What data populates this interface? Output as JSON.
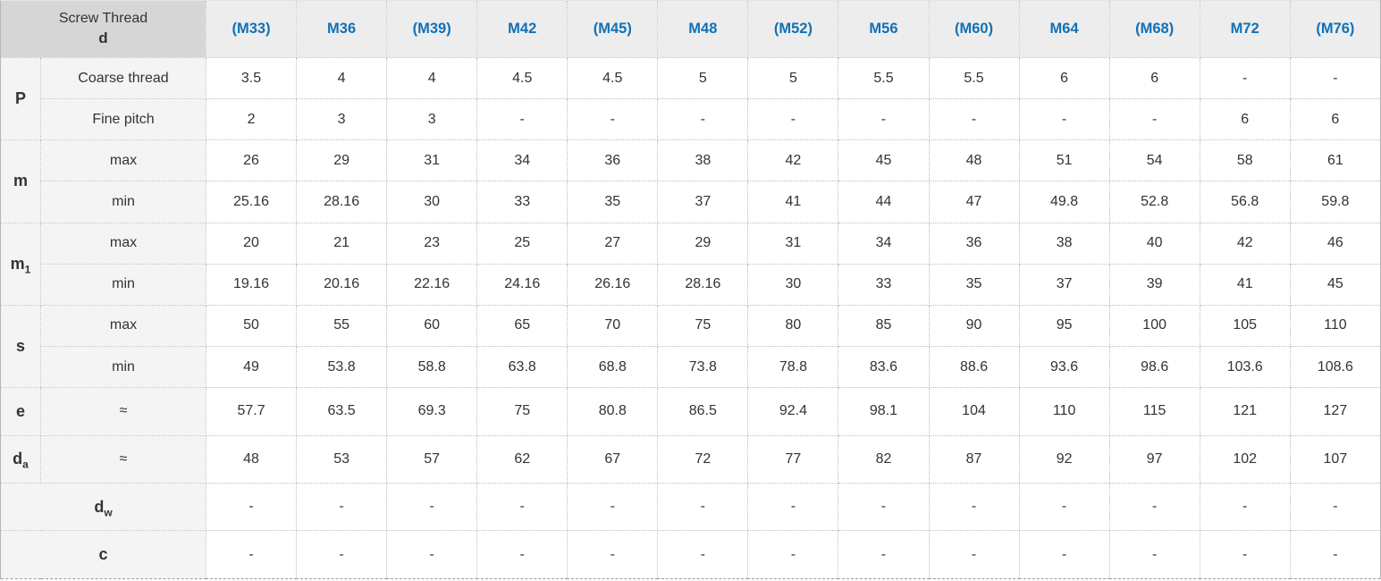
{
  "chart_data": {
    "type": "table",
    "title": "Screw thread dimension table",
    "corner_header": {
      "line1": "Screw Thread",
      "line2": "d"
    },
    "columns": [
      "(M33)",
      "M36",
      "(M39)",
      "M42",
      "(M45)",
      "M48",
      "(M52)",
      "M56",
      "(M60)",
      "M64",
      "(M68)",
      "M72",
      "(M76)"
    ],
    "row_groups": [
      {
        "label": "P",
        "rows": [
          {
            "sublabel": "Coarse thread",
            "values": [
              "3.5",
              "4",
              "4",
              "4.5",
              "4.5",
              "5",
              "5",
              "5.5",
              "5.5",
              "6",
              "6",
              "-",
              "-"
            ]
          },
          {
            "sublabel": "Fine pitch",
            "values": [
              "2",
              "3",
              "3",
              "-",
              "-",
              "-",
              "-",
              "-",
              "-",
              "-",
              "-",
              "6",
              "6"
            ]
          }
        ]
      },
      {
        "label": "m",
        "rows": [
          {
            "sublabel": "max",
            "values": [
              "26",
              "29",
              "31",
              "34",
              "36",
              "38",
              "42",
              "45",
              "48",
              "51",
              "54",
              "58",
              "61"
            ]
          },
          {
            "sublabel": "min",
            "values": [
              "25.16",
              "28.16",
              "30",
              "33",
              "35",
              "37",
              "41",
              "44",
              "47",
              "49.8",
              "52.8",
              "56.8",
              "59.8"
            ]
          }
        ]
      },
      {
        "label": "m",
        "label_sub": "1",
        "rows": [
          {
            "sublabel": "max",
            "values": [
              "20",
              "21",
              "23",
              "25",
              "27",
              "29",
              "31",
              "34",
              "36",
              "38",
              "40",
              "42",
              "46"
            ]
          },
          {
            "sublabel": "min",
            "values": [
              "19.16",
              "20.16",
              "22.16",
              "24.16",
              "26.16",
              "28.16",
              "30",
              "33",
              "35",
              "37",
              "39",
              "41",
              "45"
            ]
          }
        ]
      },
      {
        "label": "s",
        "rows": [
          {
            "sublabel": "max",
            "values": [
              "50",
              "55",
              "60",
              "65",
              "70",
              "75",
              "80",
              "85",
              "90",
              "95",
              "100",
              "105",
              "110"
            ]
          },
          {
            "sublabel": "min",
            "values": [
              "49",
              "53.8",
              "58.8",
              "63.8",
              "68.8",
              "73.8",
              "78.8",
              "83.6",
              "88.6",
              "93.6",
              "98.6",
              "103.6",
              "108.6"
            ]
          }
        ]
      },
      {
        "label": "e",
        "rows": [
          {
            "sublabel": "≈",
            "values": [
              "57.7",
              "63.5",
              "69.3",
              "75",
              "80.8",
              "86.5",
              "92.4",
              "98.1",
              "104",
              "110",
              "115",
              "121",
              "127"
            ]
          }
        ]
      },
      {
        "label": "d",
        "label_sub": "a",
        "rows": [
          {
            "sublabel": "≈",
            "values": [
              "48",
              "53",
              "57",
              "62",
              "67",
              "72",
              "77",
              "82",
              "87",
              "92",
              "97",
              "102",
              "107"
            ]
          }
        ]
      },
      {
        "label": "d",
        "label_sub": "w",
        "merged": true,
        "rows": [
          {
            "values": [
              "-",
              "-",
              "-",
              "-",
              "-",
              "-",
              "-",
              "-",
              "-",
              "-",
              "-",
              "-",
              "-"
            ]
          }
        ]
      },
      {
        "label": "c",
        "merged": true,
        "rows": [
          {
            "values": [
              "-",
              "-",
              "-",
              "-",
              "-",
              "-",
              "-",
              "-",
              "-",
              "-",
              "-",
              "-",
              "-"
            ]
          }
        ]
      }
    ]
  },
  "colors": {
    "header_corner_bg": "#d6d6d6",
    "header_col_bg": "#ededed",
    "label_col_bg": "#f4f4f4",
    "accent_blue": "#1271b5",
    "text": "#333333",
    "border_dotted": "#bdbdbd",
    "border_outer": "#b5b5b5"
  }
}
